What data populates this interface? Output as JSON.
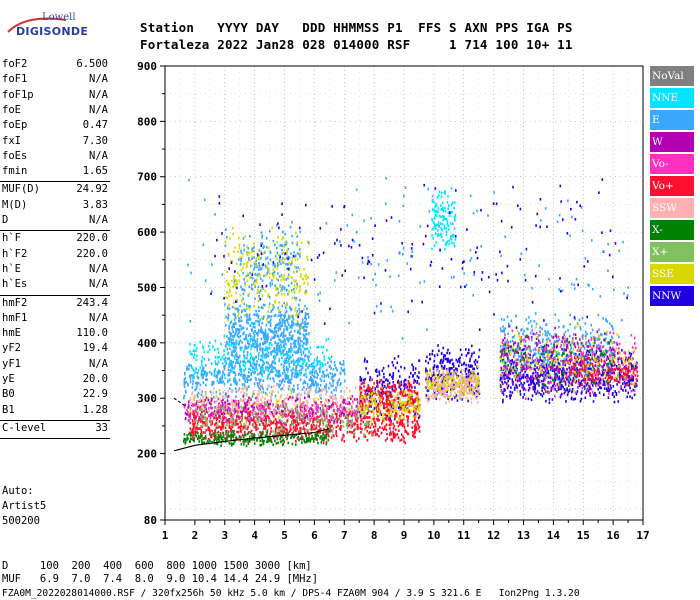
{
  "logo": {
    "line1": "Lowell",
    "line2": "DIGISONDE"
  },
  "header": {
    "row1": "Station   YYYY DAY   DDD HHMMSS P1  FFS S AXN PPS IGA PS",
    "row2": "Fortaleza 2022 Jan28 028 014000 RSF     1 714 100 10+ 11"
  },
  "params": [
    {
      "label": "foF2",
      "value": "6.500"
    },
    {
      "label": "foF1",
      "value": "N/A"
    },
    {
      "label": "foF1p",
      "value": "N/A"
    },
    {
      "label": "foE",
      "value": "N/A"
    },
    {
      "label": "foEp",
      "value": "0.47"
    },
    {
      "label": "fxI",
      "value": "7.30"
    },
    {
      "label": "foEs",
      "value": "N/A"
    },
    {
      "label": "fmin",
      "value": "1.65"
    },
    {
      "label": "MUF(D)",
      "value": "24.92"
    },
    {
      "label": "M(D)",
      "value": "3.83"
    },
    {
      "label": "D",
      "value": "N/A"
    },
    {
      "label": "h`F",
      "value": "220.0"
    },
    {
      "label": "h`F2",
      "value": "220.0"
    },
    {
      "label": "h`E",
      "value": "N/A"
    },
    {
      "label": "h`Es",
      "value": "N/A"
    },
    {
      "label": "hmF2",
      "value": "243.4"
    },
    {
      "label": "hmF1",
      "value": "N/A"
    },
    {
      "label": "hmE",
      "value": "110.0"
    },
    {
      "label": "yF2",
      "value": "19.4"
    },
    {
      "label": "yF1",
      "value": "N/A"
    },
    {
      "label": "yE",
      "value": "20.0"
    },
    {
      "label": "B0",
      "value": "22.9"
    },
    {
      "label": "B1",
      "value": "1.28"
    },
    {
      "label": "C-level",
      "value": "33"
    }
  ],
  "auto": {
    "line1": "Auto:",
    "line2": "Artist5",
    "line3": "500200"
  },
  "legend": [
    {
      "label": "NoVal",
      "color": "#808080"
    },
    {
      "label": "NNE",
      "color": "#00e5ff"
    },
    {
      "label": "E",
      "color": "#3aa8ff"
    },
    {
      "label": "W",
      "color": "#b000b0"
    },
    {
      "label": "Vo-",
      "color": "#ff30c0"
    },
    {
      "label": "Vo+",
      "color": "#ff1030"
    },
    {
      "label": "SSW",
      "color": "#ffb0b0"
    },
    {
      "label": "X-",
      "color": "#008000"
    },
    {
      "label": "X+",
      "color": "#80c060"
    },
    {
      "label": "SSE",
      "color": "#d8d800"
    },
    {
      "label": "NNW",
      "color": "#2000e0"
    }
  ],
  "bottom": {
    "row1": "D     100  200  400  600  800 1000 1500 3000 [km]",
    "row2": "MUF   6.9  7.0  7.4  8.0  9.0 10.4 14.4 24.9 [MHz]",
    "row3": "FZA0M_2022028014000.RSF / 320fx256h 50 kHz 5.0 km / DPS-4 FZA0M 904 / 3.9 S 321.6 E   Ion2Png 1.3.20"
  },
  "chart_data": {
    "type": "scatter",
    "xlim": [
      1,
      17
    ],
    "ylim": [
      80,
      900
    ],
    "xticks": [
      1,
      2,
      3,
      4,
      5,
      6,
      7,
      8,
      9,
      10,
      11,
      12,
      13,
      14,
      15,
      16,
      17
    ],
    "yticks": [
      80,
      200,
      300,
      400,
      500,
      600,
      700,
      800,
      900
    ],
    "grid": "dotted",
    "trace_curve": {
      "x": [
        1.3,
        2,
        3,
        4,
        5,
        6,
        6.5
      ],
      "y": [
        205,
        215,
        222,
        228,
        233,
        238,
        245
      ]
    },
    "clusters": [
      {
        "series": "E",
        "x": [
          1.6,
          7.0
        ],
        "y": [
          300,
          380
        ],
        "n": 520
      },
      {
        "series": "E",
        "x": [
          3.0,
          5.8
        ],
        "y": [
          340,
          480
        ],
        "n": 700
      },
      {
        "series": "E",
        "x": [
          3.5,
          5.5
        ],
        "y": [
          470,
          620
        ],
        "n": 180
      },
      {
        "series": "NNE",
        "x": [
          1.8,
          6.5
        ],
        "y": [
          330,
          420
        ],
        "n": 200
      },
      {
        "series": "SSE",
        "x": [
          3.0,
          5.8
        ],
        "y": [
          420,
          620
        ],
        "n": 220
      },
      {
        "series": "SSE",
        "x": [
          1.8,
          8.0
        ],
        "y": [
          250,
          320
        ],
        "n": 160
      },
      {
        "series": "W",
        "x": [
          1.6,
          7.5
        ],
        "y": [
          255,
          310
        ],
        "n": 320
      },
      {
        "series": "Vo-",
        "x": [
          1.6,
          7.5
        ],
        "y": [
          250,
          300
        ],
        "n": 280
      },
      {
        "series": "Vo+",
        "x": [
          1.8,
          9.5
        ],
        "y": [
          220,
          280
        ],
        "n": 700
      },
      {
        "series": "SSW",
        "x": [
          1.8,
          9.5
        ],
        "y": [
          270,
          330
        ],
        "n": 240
      },
      {
        "series": "X-",
        "x": [
          1.6,
          6.5
        ],
        "y": [
          215,
          245
        ],
        "n": 260
      },
      {
        "series": "X+",
        "x": [
          2.0,
          8.0
        ],
        "y": [
          230,
          300
        ],
        "n": 200
      },
      {
        "series": "NNW",
        "x": [
          7.5,
          9.5
        ],
        "y": [
          260,
          380
        ],
        "n": 200
      },
      {
        "series": "Vo+",
        "x": [
          7.5,
          9.5
        ],
        "y": [
          260,
          340
        ],
        "n": 260
      },
      {
        "series": "SSE",
        "x": [
          7.5,
          9.5
        ],
        "y": [
          260,
          320
        ],
        "n": 140
      },
      {
        "series": "NNW",
        "x": [
          9.7,
          11.5
        ],
        "y": [
          290,
          400
        ],
        "n": 300
      },
      {
        "series": "SSE",
        "x": [
          9.7,
          11.5
        ],
        "y": [
          300,
          360
        ],
        "n": 200
      },
      {
        "series": "SSW",
        "x": [
          9.7,
          11.5
        ],
        "y": [
          290,
          360
        ],
        "n": 160
      },
      {
        "series": "NNE",
        "x": [
          9.9,
          10.7
        ],
        "y": [
          560,
          690
        ],
        "n": 120
      },
      {
        "series": "NNW",
        "x": [
          12.2,
          16.8
        ],
        "y": [
          290,
          400
        ],
        "n": 700
      },
      {
        "series": "E",
        "x": [
          12.2,
          16.0
        ],
        "y": [
          330,
          460
        ],
        "n": 360
      },
      {
        "series": "Vo-",
        "x": [
          12.2,
          16.8
        ],
        "y": [
          300,
          430
        ],
        "n": 260
      },
      {
        "series": "W",
        "x": [
          12.2,
          16.0
        ],
        "y": [
          300,
          450
        ],
        "n": 180
      },
      {
        "series": "X-",
        "x": [
          12.2,
          16.0
        ],
        "y": [
          310,
          420
        ],
        "n": 100
      },
      {
        "series": "Vo+",
        "x": [
          14.5,
          16.8
        ],
        "y": [
          320,
          380
        ],
        "n": 140
      },
      {
        "series": "SSE",
        "x": [
          12.2,
          16.8
        ],
        "y": [
          310,
          440
        ],
        "n": 140
      },
      {
        "series": "NNW",
        "x": [
          2.5,
          16.5
        ],
        "y": [
          420,
          720
        ],
        "n": 160
      },
      {
        "series": "E",
        "x": [
          1.6,
          16.5
        ],
        "y": [
          400,
          720
        ],
        "n": 140
      }
    ]
  }
}
